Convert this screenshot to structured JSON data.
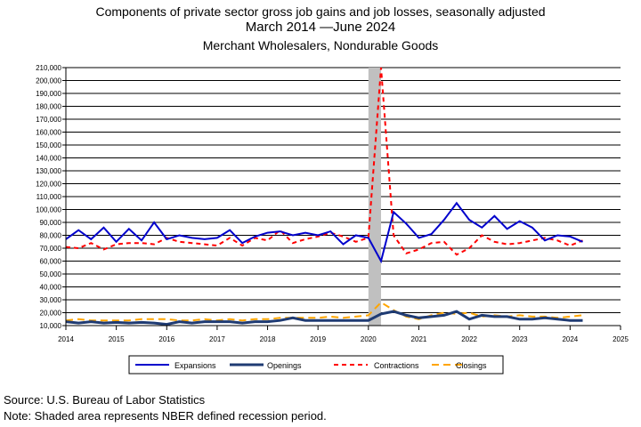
{
  "header": {
    "title_line1": "Components of private sector gross job gains and job losses, seasonally adjusted",
    "title_line2": "March 2014  —June 2024",
    "title_line3": "Merchant Wholesalers, Nondurable Goods"
  },
  "footer": {
    "source": "Source: U.S. Bureau of Labor Statistics",
    "note": "Note: Shaded area represents NBER defined recession period."
  },
  "chart_data": {
    "type": "line",
    "ylim": [
      10000,
      210000
    ],
    "ytick_step": 10000,
    "ytick_labels": [
      "10,000",
      "20,000",
      "30,000",
      "40,000",
      "50,000",
      "60,000",
      "70,000",
      "80,000",
      "90,000",
      "100,000",
      "110,000",
      "120,000",
      "130,000",
      "140,000",
      "150,000",
      "160,000",
      "170,000",
      "180,000",
      "190,000",
      "200,000",
      "210,000"
    ],
    "xlim": [
      2014,
      2025
    ],
    "xtick_labels": [
      "2014",
      "2015",
      "2016",
      "2017",
      "2018",
      "2019",
      "2020",
      "2021",
      "2022",
      "2023",
      "2024",
      "2025"
    ],
    "grid": true,
    "recession": {
      "start": 2020.0,
      "end": 2020.25
    },
    "legend_position": "bottom",
    "series": [
      {
        "name": "Expansions",
        "color": "#0000cc",
        "dash": "solid",
        "x": [
          2014.0,
          2014.25,
          2014.5,
          2014.75,
          2015.0,
          2015.25,
          2015.5,
          2015.75,
          2016.0,
          2016.25,
          2016.5,
          2016.75,
          2017.0,
          2017.25,
          2017.5,
          2017.75,
          2018.0,
          2018.25,
          2018.5,
          2018.75,
          2019.0,
          2019.25,
          2019.5,
          2019.75,
          2020.0,
          2020.25,
          2020.5,
          2020.75,
          2021.0,
          2021.25,
          2021.5,
          2021.75,
          2022.0,
          2022.25,
          2022.5,
          2022.75,
          2023.0,
          2023.25,
          2023.5,
          2023.75,
          2024.0,
          2024.25
        ],
        "values": [
          77000,
          84000,
          77000,
          86000,
          75000,
          85000,
          76000,
          90000,
          77000,
          80000,
          78000,
          77000,
          78000,
          84000,
          74000,
          79000,
          82000,
          83000,
          80000,
          82000,
          80000,
          83000,
          73000,
          80000,
          78000,
          60000,
          98000,
          89000,
          78000,
          81000,
          92000,
          105000,
          92000,
          86000,
          95000,
          85000,
          91000,
          86000,
          76000,
          80000,
          79000,
          75000
        ]
      },
      {
        "name": "Openings",
        "color": "#1f3b73",
        "dash": "solid",
        "x": [
          2014.0,
          2014.25,
          2014.5,
          2014.75,
          2015.0,
          2015.25,
          2015.5,
          2015.75,
          2016.0,
          2016.25,
          2016.5,
          2016.75,
          2017.0,
          2017.25,
          2017.5,
          2017.75,
          2018.0,
          2018.25,
          2018.5,
          2018.75,
          2019.0,
          2019.25,
          2019.5,
          2019.75,
          2020.0,
          2020.25,
          2020.5,
          2020.75,
          2021.0,
          2021.25,
          2021.5,
          2021.75,
          2022.0,
          2022.25,
          2022.5,
          2022.75,
          2023.0,
          2023.25,
          2023.5,
          2023.75,
          2024.0,
          2024.25
        ],
        "values": [
          13000,
          12000,
          13000,
          12000,
          12500,
          12000,
          12500,
          12000,
          11000,
          13000,
          12000,
          13000,
          13000,
          13000,
          12000,
          13000,
          13000,
          14000,
          16000,
          14000,
          14000,
          14000,
          14000,
          14000,
          14000,
          19000,
          21000,
          18000,
          16000,
          17000,
          18000,
          21000,
          15000,
          18000,
          17000,
          17000,
          15000,
          15000,
          16000,
          15000,
          14000,
          14000
        ]
      },
      {
        "name": "Contractions",
        "color": "#ff0000",
        "dash": "5,4",
        "x": [
          2014.0,
          2014.25,
          2014.5,
          2014.75,
          2015.0,
          2015.25,
          2015.5,
          2015.75,
          2016.0,
          2016.25,
          2016.5,
          2016.75,
          2017.0,
          2017.25,
          2017.5,
          2017.75,
          2018.0,
          2018.25,
          2018.5,
          2018.75,
          2019.0,
          2019.25,
          2019.5,
          2019.75,
          2020.0,
          2020.25,
          2020.5,
          2020.75,
          2021.0,
          2021.25,
          2021.5,
          2021.75,
          2022.0,
          2022.25,
          2022.5,
          2022.75,
          2023.0,
          2023.25,
          2023.5,
          2023.75,
          2024.0,
          2024.25
        ],
        "values": [
          71000,
          70000,
          74000,
          69000,
          73000,
          74000,
          74000,
          73000,
          78000,
          75000,
          74000,
          73000,
          72000,
          78000,
          72000,
          78000,
          76000,
          84000,
          74000,
          77000,
          79000,
          82000,
          79000,
          75000,
          78000,
          210000,
          80000,
          66000,
          69000,
          74000,
          75000,
          65000,
          70000,
          80000,
          75000,
          73000,
          74000,
          76000,
          78000,
          76000,
          72000,
          76000
        ]
      },
      {
        "name": "Closings",
        "color": "#ffa500",
        "dash": "8,5",
        "x": [
          2014.0,
          2014.25,
          2014.5,
          2014.75,
          2015.0,
          2015.25,
          2015.5,
          2015.75,
          2016.0,
          2016.25,
          2016.5,
          2016.75,
          2017.0,
          2017.25,
          2017.5,
          2017.75,
          2018.0,
          2018.25,
          2018.5,
          2018.75,
          2019.0,
          2019.25,
          2019.5,
          2019.75,
          2020.0,
          2020.25,
          2020.5,
          2020.75,
          2021.0,
          2021.25,
          2021.5,
          2021.75,
          2022.0,
          2022.25,
          2022.5,
          2022.75,
          2023.0,
          2023.25,
          2023.5,
          2023.75,
          2024.0,
          2024.25
        ],
        "values": [
          14000,
          15000,
          14000,
          14000,
          14000,
          14000,
          15000,
          15000,
          15000,
          14000,
          14000,
          15000,
          14000,
          15000,
          14000,
          15000,
          15000,
          16000,
          16000,
          16000,
          16000,
          17000,
          16000,
          17000,
          18000,
          28000,
          22000,
          17000,
          15000,
          18000,
          20000,
          19000,
          20000,
          17000,
          18000,
          17000,
          18000,
          17000,
          17000,
          16000,
          17000,
          18000
        ]
      }
    ]
  }
}
